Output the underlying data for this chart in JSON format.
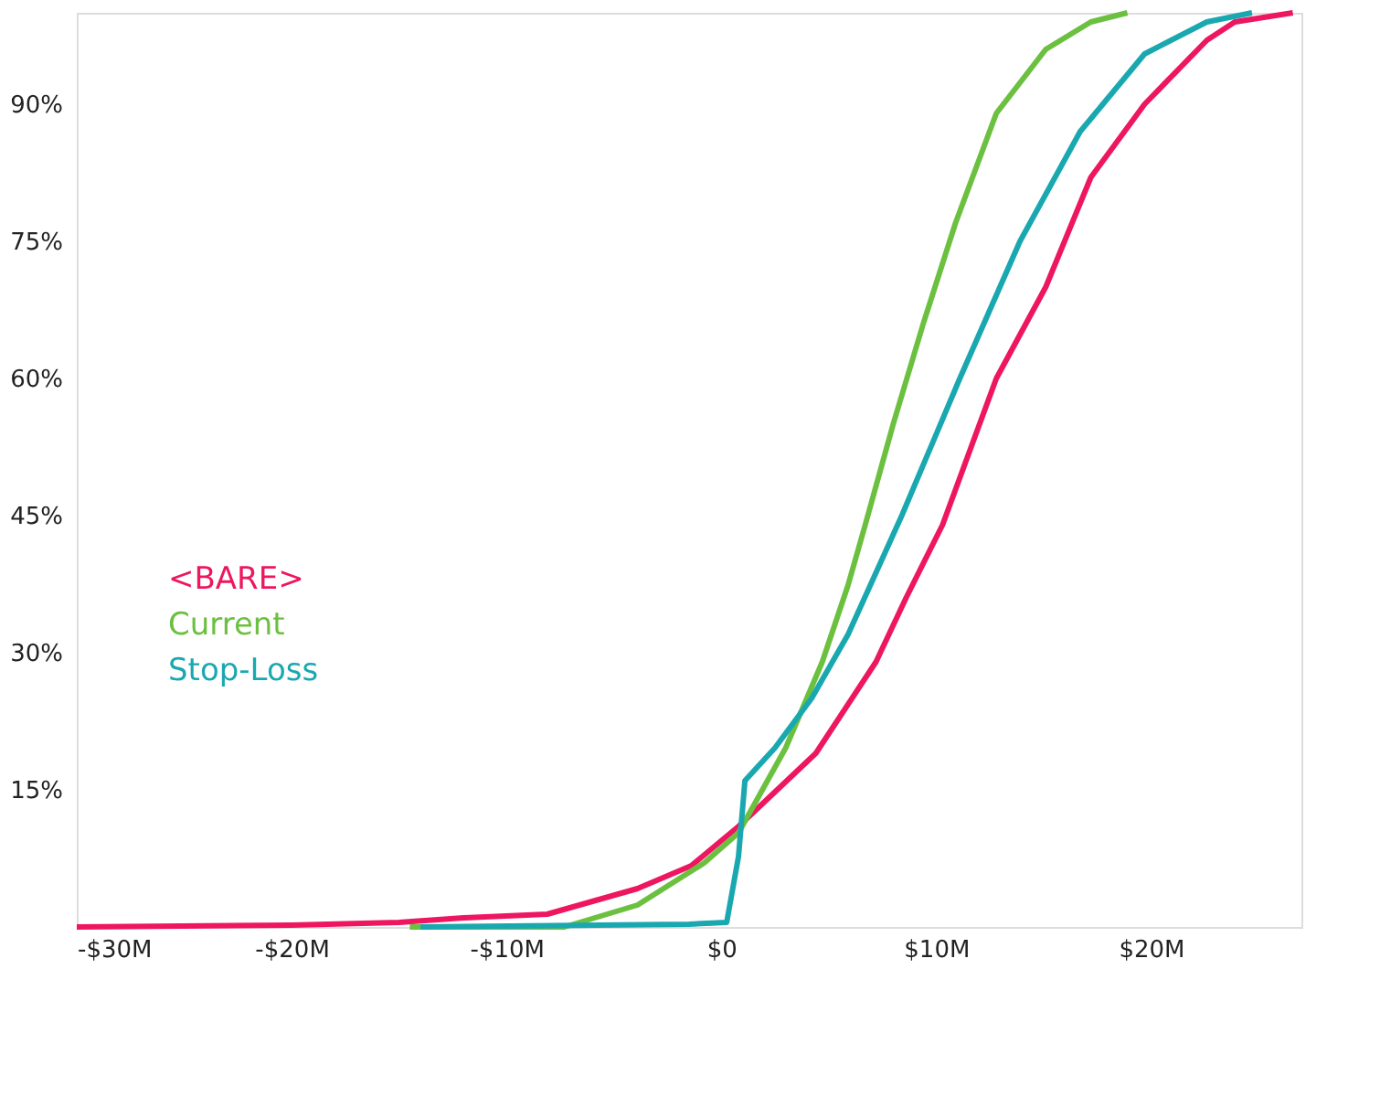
{
  "chart_data": {
    "type": "line",
    "xlim": [
      -30,
      27
    ],
    "ylim": [
      0,
      100
    ],
    "xticks": [
      {
        "value": -30,
        "label": "-$30M"
      },
      {
        "value": -20,
        "label": "-$20M"
      },
      {
        "value": -10,
        "label": "-$10M"
      },
      {
        "value": 0,
        "label": "$0"
      },
      {
        "value": 10,
        "label": "$10M"
      },
      {
        "value": 20,
        "label": "$20M"
      }
    ],
    "yticks": [
      {
        "value": 15,
        "label": "15%"
      },
      {
        "value": 30,
        "label": "30%"
      },
      {
        "value": 45,
        "label": "45%"
      },
      {
        "value": 60,
        "label": "60%"
      },
      {
        "value": 75,
        "label": "75%"
      },
      {
        "value": 90,
        "label": "90%"
      }
    ],
    "grid": false,
    "legend": "left",
    "marker": "none",
    "line_style": "solid",
    "series": [
      {
        "name": "<BARE>",
        "color": "#ee1660",
        "x": [
          -30,
          -20,
          -15,
          -12,
          -8.1,
          -3.9,
          -1.4,
          0.8,
          4.4,
          7.2,
          8.6,
          10.3,
          12.8,
          15.1,
          17.2,
          19.7,
          22.6,
          23.9,
          26.6
        ],
        "values": [
          0,
          0.2,
          0.5,
          1,
          1.4,
          4.2,
          6.7,
          11,
          19,
          29,
          36,
          44,
          60,
          70,
          82,
          90,
          97,
          99,
          100
        ]
      },
      {
        "name": "Current",
        "color": "#6cc040",
        "x": [
          -14.5,
          -7.3,
          -3.9,
          -0.8,
          0.8,
          3,
          4.7,
          5.9,
          6.7,
          8.0,
          9.4,
          10.9,
          12.8,
          15.1,
          17.2,
          18.9
        ],
        "values": [
          0,
          0,
          2.4,
          7,
          10.3,
          19.6,
          29,
          37.4,
          44,
          55,
          66,
          77,
          89,
          96,
          99,
          100
        ]
      },
      {
        "name": "Stop-Loss",
        "color": "#1aa8b0",
        "x": [
          -14,
          -1.5,
          0.25,
          0.8,
          1.1,
          2.5,
          4.2,
          5.9,
          8.4,
          11.1,
          13.9,
          16.7,
          19.7,
          22.6,
          24.7
        ],
        "values": [
          0,
          0.3,
          0.5,
          7.7,
          16,
          19.6,
          25,
          32,
          45,
          60,
          75,
          87,
          95.5,
          99,
          100
        ]
      }
    ]
  }
}
